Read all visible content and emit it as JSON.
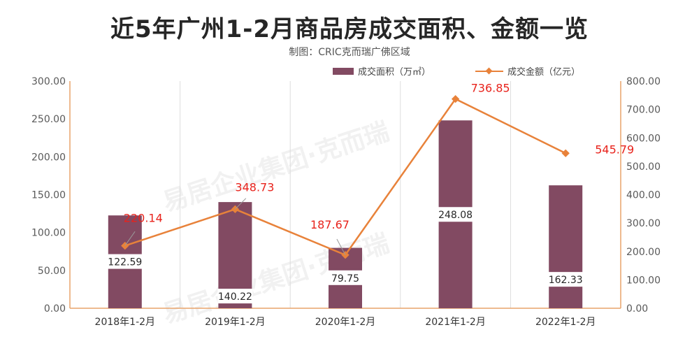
{
  "title": "近5年广州1-2月商品房成交面积、金额一览",
  "subtitle": "制图：CRIC克而瑞广佛区域",
  "watermark": "易居企业集团·克而瑞",
  "colors": {
    "bar": "#824a62",
    "line": "#e8823a",
    "line_label": "#e8231c",
    "axis": "#e8a36a",
    "grid": "#dddddd"
  },
  "chart_data": {
    "type": "bar",
    "title": "近5年广州1-2月商品房成交面积、金额一览",
    "categories": [
      "2018年1-2月",
      "2019年1-2月",
      "2020年1-2月",
      "2021年1-2月",
      "2022年1-2月"
    ],
    "series": [
      {
        "name": "成交面积（万㎡）",
        "type": "bar",
        "axis": "left",
        "values": [
          122.59,
          140.22,
          79.75,
          248.08,
          162.33
        ]
      },
      {
        "name": "成交金额（亿元）",
        "type": "line",
        "axis": "right",
        "values": [
          220.14,
          348.73,
          187.67,
          736.85,
          545.79
        ]
      }
    ],
    "y_left": {
      "lim": [
        0,
        300
      ],
      "ticks": [
        "0.00",
        "50.00",
        "100.00",
        "150.00",
        "200.00",
        "250.00",
        "300.00"
      ]
    },
    "y_right": {
      "lim": [
        0,
        800
      ],
      "ticks": [
        "0.00",
        "100.00",
        "200.00",
        "300.00",
        "400.00",
        "500.00",
        "600.00",
        "700.00",
        "800.00"
      ]
    },
    "legend_position": "top",
    "grid": "vertical"
  }
}
